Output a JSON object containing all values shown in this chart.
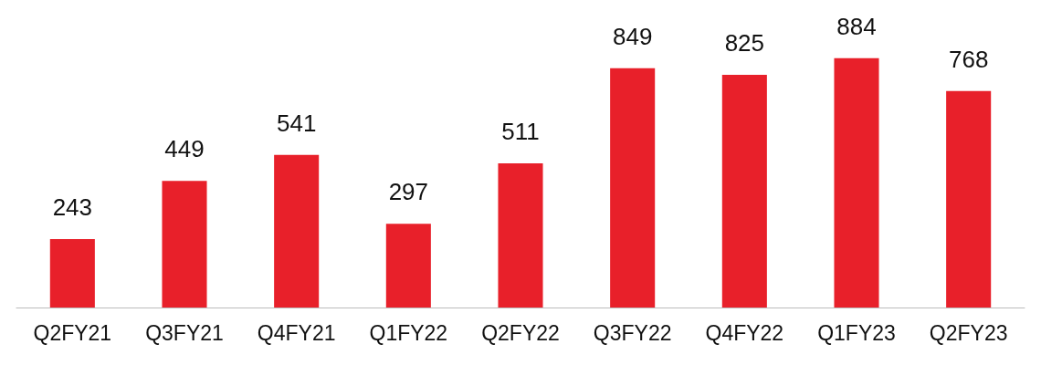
{
  "chart_data": {
    "type": "bar",
    "categories": [
      "Q2FY21",
      "Q3FY21",
      "Q4FY21",
      "Q1FY22",
      "Q2FY22",
      "Q3FY22",
      "Q4FY22",
      "Q1FY23",
      "Q2FY23"
    ],
    "values": [
      243,
      449,
      541,
      297,
      511,
      849,
      825,
      884,
      768
    ],
    "color": "#e8202a",
    "data_labels": true,
    "tick_labels": "x"
  }
}
